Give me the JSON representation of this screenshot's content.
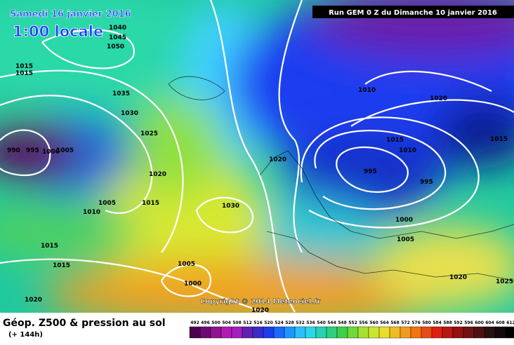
{
  "header": {
    "date": "Samedi 16 janvier 2016",
    "time": "1:00 locale",
    "run": "Run GEM 0 Z du Dimanche 10 janvier 2016"
  },
  "isobar_labels": [
    "1040",
    "1045",
    "1050",
    "1015",
    "1015",
    "1035",
    "1030",
    "1025",
    "990",
    "995",
    "1000",
    "1005",
    "1020",
    "1005",
    "1010",
    "1015",
    "1030",
    "1015",
    "1015",
    "1005",
    "1000",
    "1020",
    "1010",
    "1020",
    "1015",
    "1010",
    "1020",
    "995",
    "995",
    "1000",
    "1005",
    "1020",
    "1025",
    "1015",
    "1020"
  ],
  "footer": {
    "title": "Géop. Z500 & pression au sol",
    "lead": "(+ 144h)",
    "copyright": "Copyright © 2014 Meteociel.fr"
  },
  "legend": {
    "ticks": [
      492,
      496,
      500,
      504,
      508,
      512,
      516,
      520,
      524,
      528,
      532,
      536,
      540,
      544,
      548,
      552,
      556,
      560,
      564,
      568,
      572,
      576,
      580,
      584,
      588,
      592,
      596,
      600,
      604,
      608,
      612
    ]
  }
}
